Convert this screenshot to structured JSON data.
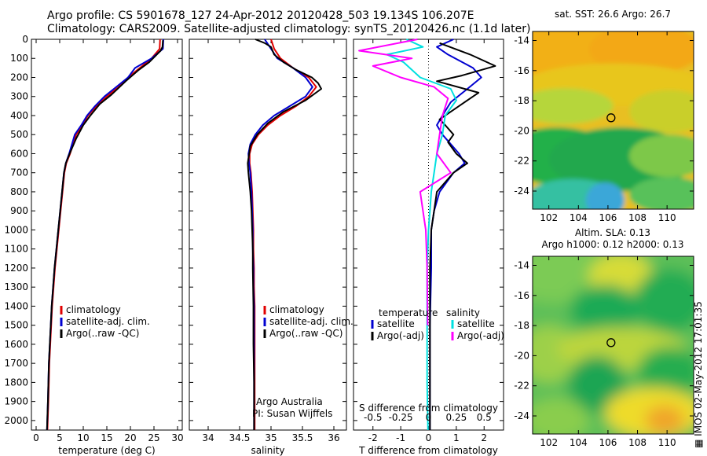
{
  "title_line1": "Argo profile: CS 5901678_127 24-Apr-2012 20120428_503 19.134S 106.207E",
  "title_line2": "Climatology: CARS2009. Satellite-adjusted climatology: synTS_20120426.nc (1.1d later)",
  "side_label": "IMOS 02-May-2012 17:01:35",
  "colors": {
    "climatology": "#e00000",
    "satellite": "#0000d0",
    "argo": "#000000",
    "sat_salinity": "#00e0e0",
    "argo_adj_salinity": "#ff00ff"
  },
  "chart_data": [
    {
      "type": "line",
      "name": "temperature",
      "xlabel": "temperature (deg C)",
      "xlim": [
        -1,
        31
      ],
      "xticks": [
        "0",
        "5",
        "10",
        "15",
        "20",
        "25",
        "30"
      ],
      "ylim": [
        2050,
        0
      ],
      "yticks": [
        "0",
        "100",
        "200",
        "300",
        "400",
        "500",
        "600",
        "700",
        "800",
        "900",
        "1000",
        "1100",
        "1200",
        "1300",
        "1400",
        "1500",
        "1600",
        "1700",
        "1800",
        "1900",
        "2000"
      ],
      "legend": [
        "climatology",
        "satellite-adj. clim.",
        "Argo(..raw -QC)"
      ],
      "series": [
        {
          "name": "climatology",
          "color_key": "climatology",
          "x": [
            26.3,
            26.2,
            24.5,
            22.0,
            19.5,
            17.5,
            15.0,
            12.8,
            11.0,
            9.8,
            8.5,
            7.2,
            6.4,
            6.0,
            5.6,
            5.2,
            4.8,
            4.4,
            4.0,
            3.7,
            3.4,
            3.2,
            3.0,
            2.8,
            2.6,
            2.4
          ],
          "y": [
            0,
            50,
            100,
            150,
            200,
            250,
            300,
            350,
            400,
            450,
            500,
            600,
            650,
            700,
            800,
            900,
            1000,
            1100,
            1200,
            1300,
            1400,
            1500,
            1600,
            1700,
            1900,
            2050
          ]
        },
        {
          "name": "satellite-adj. clim.",
          "color_key": "satellite",
          "x": [
            27.0,
            26.9,
            24.5,
            21.0,
            19.5,
            17.0,
            14.5,
            12.5,
            10.8,
            9.6,
            8.2,
            7.0,
            6.3,
            5.9,
            5.5,
            5.1,
            4.7,
            4.3,
            3.9,
            3.6,
            3.3,
            3.1,
            2.9,
            2.7,
            2.5,
            2.3
          ],
          "y": [
            0,
            50,
            100,
            150,
            200,
            250,
            300,
            350,
            400,
            450,
            500,
            600,
            650,
            700,
            800,
            900,
            1000,
            1100,
            1200,
            1300,
            1400,
            1500,
            1600,
            1700,
            1900,
            2050
          ]
        },
        {
          "name": "Argo(..raw -QC)",
          "color_key": "argo",
          "x": [
            26.9,
            26.8,
            26.4,
            24.0,
            21.8,
            19.0,
            16.0,
            13.5,
            11.5,
            10.0,
            8.5,
            7.1,
            6.3,
            5.9,
            5.5,
            5.1,
            4.7,
            4.3,
            3.9,
            3.6,
            3.3,
            3.1,
            2.9,
            2.7,
            2.5,
            2.3
          ],
          "y": [
            5,
            40,
            60,
            120,
            160,
            220,
            290,
            340,
            400,
            450,
            520,
            600,
            650,
            700,
            800,
            900,
            1000,
            1100,
            1200,
            1300,
            1400,
            1500,
            1600,
            1700,
            1900,
            2050
          ]
        }
      ]
    },
    {
      "type": "line",
      "name": "salinity",
      "xlabel": "salinity",
      "xlim": [
        33.7,
        36.2
      ],
      "xticks": [
        "34",
        "34.5",
        "35",
        "35.5",
        "36"
      ],
      "ylim": [
        2050,
        0
      ],
      "legend": [
        "climatology",
        "satellite-adj. clim.",
        "Argo(..raw -QC)"
      ],
      "annotation": [
        "Argo Australia",
        "PI: Susan Wijffels"
      ],
      "series": [
        {
          "name": "climatology",
          "color_key": "climatology",
          "x": [
            35.0,
            35.05,
            35.15,
            35.35,
            35.6,
            35.72,
            35.6,
            35.4,
            35.15,
            34.95,
            34.8,
            34.7,
            34.66,
            34.66,
            34.68,
            34.7,
            34.71,
            34.72,
            34.72,
            34.73,
            34.73,
            34.74,
            34.74,
            34.74,
            34.74,
            34.74
          ],
          "y": [
            0,
            50,
            100,
            150,
            200,
            250,
            300,
            350,
            400,
            450,
            500,
            550,
            600,
            650,
            700,
            800,
            900,
            1000,
            1100,
            1200,
            1300,
            1400,
            1500,
            1600,
            1800,
            2050
          ]
        },
        {
          "name": "satellite-adj. clim.",
          "color_key": "satellite",
          "x": [
            34.9,
            35.0,
            35.1,
            35.35,
            35.55,
            35.66,
            35.55,
            35.3,
            35.05,
            34.87,
            34.75,
            34.67,
            34.64,
            34.65,
            34.67,
            34.69,
            34.7,
            34.71,
            34.71,
            34.72,
            34.72,
            34.73,
            34.73,
            34.73,
            34.73,
            34.73
          ],
          "y": [
            0,
            50,
            100,
            150,
            200,
            250,
            300,
            350,
            400,
            450,
            500,
            550,
            600,
            650,
            700,
            800,
            900,
            1000,
            1100,
            1200,
            1300,
            1400,
            1500,
            1600,
            1800,
            2050
          ]
        },
        {
          "name": "Argo(..raw -QC)",
          "color_key": "argo",
          "x": [
            34.75,
            34.9,
            35.0,
            35.05,
            35.2,
            35.4,
            35.65,
            35.75,
            35.8,
            35.55,
            35.2,
            34.95,
            34.78,
            34.67,
            34.63,
            34.64,
            34.67,
            34.69,
            34.7,
            34.71,
            34.71,
            34.72,
            34.72,
            34.73,
            34.73,
            34.73
          ],
          "y": [
            0,
            20,
            40,
            80,
            120,
            160,
            200,
            230,
            260,
            320,
            380,
            440,
            500,
            560,
            650,
            700,
            800,
            900,
            1000,
            1100,
            1200,
            1400,
            1600,
            1800,
            1900,
            2050
          ]
        }
      ]
    },
    {
      "type": "line",
      "name": "difference",
      "xlabel": "T difference from climatology",
      "xlabel_top": "S difference from climatology",
      "xlim": [
        -2.7,
        2.7
      ],
      "xticks": [
        "-2",
        "-1",
        "0",
        "1",
        "2"
      ],
      "xticks_top": [
        "-0.5",
        "-0.25",
        "0",
        "0.25",
        "0.5"
      ],
      "ylim": [
        2050,
        0
      ],
      "legend_left_title": "temperature",
      "legend_right_title": "salinity",
      "legend_left": [
        "satellite",
        "Argo(-adj)"
      ],
      "legend_right": [
        "satellite",
        "Argo(-adj)"
      ],
      "series": [
        {
          "name": "temperature satellite",
          "color_key": "satellite",
          "x": [
            0.9,
            0.3,
            0.7,
            1.6,
            1.9,
            1.4,
            0.8,
            0.5,
            0.3,
            0.5,
            0.8,
            1.1,
            1.3,
            0.9,
            0.4,
            0.2,
            0.1,
            0.1,
            0.05,
            0.05,
            0.05
          ],
          "y": [
            0,
            40,
            80,
            150,
            200,
            260,
            330,
            400,
            450,
            500,
            550,
            600,
            650,
            700,
            800,
            900,
            1000,
            1200,
            1500,
            1800,
            2050
          ]
        },
        {
          "name": "temperature Argo(-adj)",
          "color_key": "argo",
          "x": [
            0.4,
            1.5,
            2.4,
            1.2,
            0.3,
            1.8,
            1.2,
            0.4,
            0.6,
            0.9,
            0.7,
            1.0,
            1.4,
            0.9,
            0.3,
            0.2,
            0.1,
            0.05,
            0.05,
            0.05,
            0.05
          ],
          "y": [
            20,
            80,
            140,
            190,
            220,
            280,
            340,
            420,
            450,
            500,
            540,
            600,
            650,
            700,
            800,
            900,
            1000,
            1200,
            1500,
            1800,
            2050
          ]
        },
        {
          "name": "salinity satellite",
          "color_key": "sat_salinity",
          "x": [
            -0.8,
            -0.2,
            -1.5,
            -0.9,
            -0.3,
            0.8,
            1.0,
            0.6,
            0.5,
            0.3,
            0.2,
            0.1,
            0.05,
            0.0,
            -0.05,
            -0.05,
            -0.05,
            -0.02
          ],
          "y": [
            0,
            40,
            80,
            120,
            200,
            260,
            320,
            400,
            500,
            600,
            700,
            800,
            900,
            1000,
            1200,
            1500,
            1800,
            2050
          ]
        },
        {
          "name": "salinity Argo(-adj)",
          "color_key": "argo_adj_salinity",
          "x": [
            -0.4,
            -2.5,
            -0.6,
            -2.0,
            -1.0,
            0.2,
            0.7,
            0.5,
            0.4,
            0.3,
            0.8,
            -0.3,
            -0.2,
            -0.1,
            -0.05,
            -0.03
          ],
          "y": [
            0,
            60,
            100,
            140,
            200,
            250,
            310,
            400,
            500,
            600,
            700,
            800,
            900,
            1000,
            1200,
            1500
          ]
        }
      ]
    },
    {
      "type": "heatmap",
      "name": "sst-map",
      "title": "sat. SST: 26.6  Argo: 26.7",
      "xlim": [
        100.9,
        111.8
      ],
      "ylim": [
        -25.2,
        -13.4
      ],
      "xticks": [
        "102",
        "104",
        "106",
        "108",
        "110"
      ],
      "yticks": [
        "-14",
        "-16",
        "-18",
        "-20",
        "-22",
        "-24"
      ],
      "marker": {
        "lon": 106.207,
        "lat": -19.134
      }
    },
    {
      "type": "heatmap",
      "name": "sla-map",
      "title_line1": "Altim. SLA: 0.13",
      "title_line2": "Argo h1000: 0.12  h2000: 0.13",
      "xlim": [
        100.9,
        111.8
      ],
      "ylim": [
        -25.2,
        -13.4
      ],
      "xticks": [
        "102",
        "104",
        "106",
        "108",
        "110"
      ],
      "yticks": [
        "-14",
        "-16",
        "-18",
        "-20",
        "-22",
        "-24"
      ],
      "marker": {
        "lon": 106.207,
        "lat": -19.134
      }
    }
  ]
}
